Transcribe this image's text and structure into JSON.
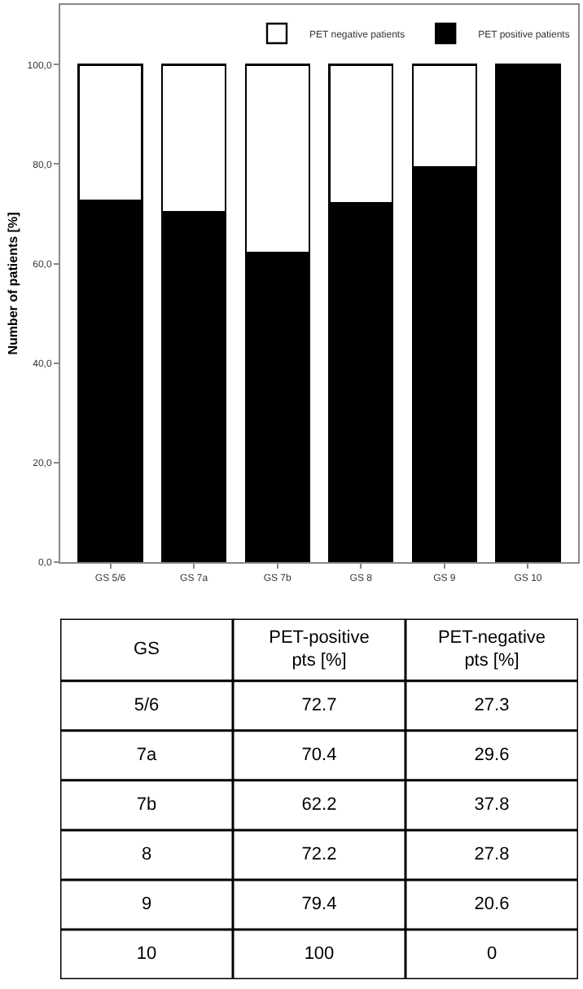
{
  "chart_data": [
    {
      "type": "bar",
      "stacked": true,
      "ylabel": "Number of patients [%]",
      "categories": [
        "GS 5/6",
        "GS 7a",
        "GS 7b",
        "GS 8",
        "GS 9",
        "GS 10"
      ],
      "series": [
        {
          "name": "PET positive patients",
          "color": "#000000",
          "values": [
            72.7,
            70.4,
            62.2,
            72.2,
            79.4,
            100
          ]
        },
        {
          "name": "PET negative patients",
          "color": "#ffffff",
          "values": [
            27.3,
            29.6,
            37.8,
            27.8,
            20.6,
            0
          ]
        }
      ],
      "ylim": [
        0,
        112
      ],
      "yticks": [
        {
          "value": 0,
          "label": "0,0"
        },
        {
          "value": 20,
          "label": "20,0"
        },
        {
          "value": 40,
          "label": "40,0"
        },
        {
          "value": 60,
          "label": "60,0"
        },
        {
          "value": 80,
          "label": "80,0"
        },
        {
          "value": 100,
          "label": "100,0"
        }
      ],
      "legend": "top right"
    },
    {
      "type": "other",
      "xlabel": "GS",
      "data_labels": true,
      "categories": [
        "5/6",
        "7a",
        "7b",
        "8",
        "9",
        "10"
      ],
      "series": [
        {
          "name": "PET-positive pts [%]",
          "values": [
            72.7,
            70.4,
            62.2,
            72.2,
            79.4,
            100
          ]
        },
        {
          "name": "PET-negative pts [%]",
          "values": [
            27.3,
            29.6,
            37.8,
            27.8,
            20.6,
            0
          ]
        }
      ]
    }
  ]
}
